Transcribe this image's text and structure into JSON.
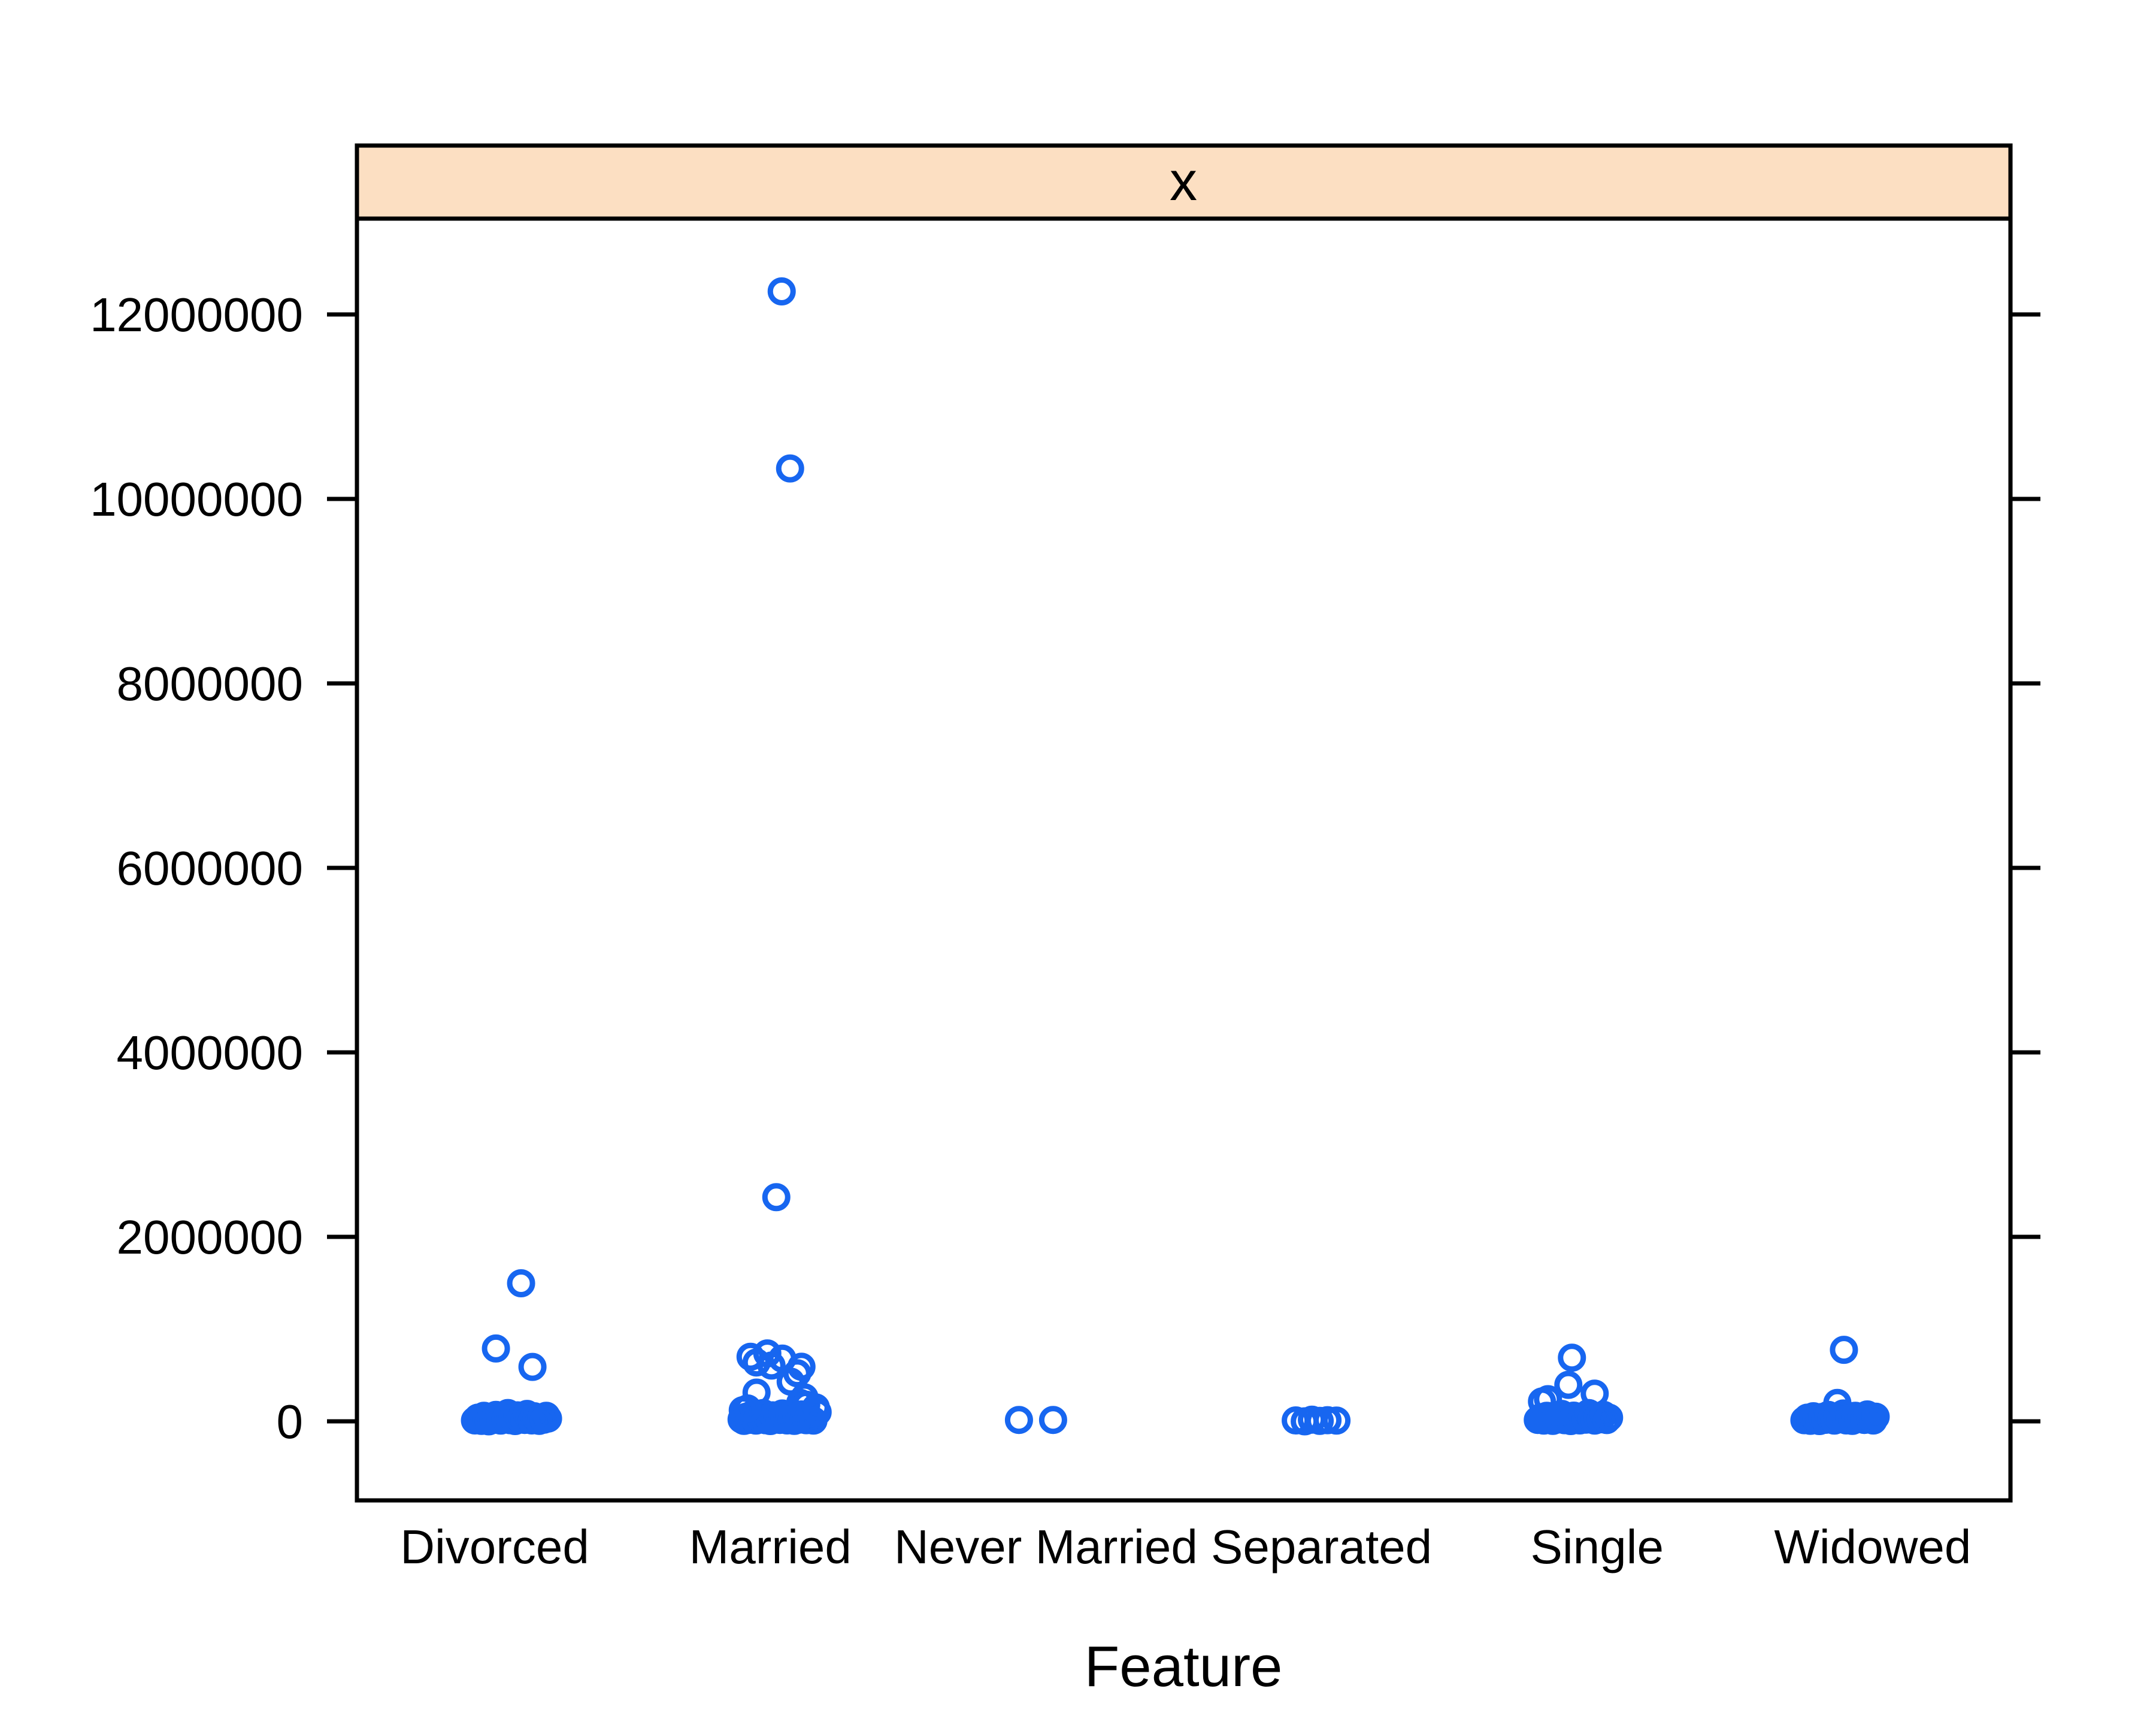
{
  "chart_data": {
    "type": "scatter",
    "subtype": "stripplot-by-category",
    "strip_label": "x",
    "xlabel": "Feature",
    "ylabel": "",
    "categories": [
      "Divorced",
      "Married",
      "Never Married",
      "Separated",
      "Single",
      "Widowed"
    ],
    "y_ticks": [
      0,
      2000000,
      4000000,
      6000000,
      8000000,
      10000000,
      12000000
    ],
    "y_tick_labels": [
      "0",
      "2000000",
      "4000000",
      "6000000",
      "8000000",
      "10000000",
      "12000000"
    ],
    "ylim": [
      -860000,
      13050000
    ],
    "grid": false,
    "legend_position": "none",
    "colors": {
      "marker": "#1766f0",
      "strip_fill": "#fcdfc2",
      "axis": "#000000",
      "background": "#ffffff"
    },
    "marker": {
      "shape": "open-circle",
      "radius": 19,
      "stroke_width": 9
    },
    "series": [
      {
        "category": "Divorced",
        "points": [
          [
            44,
            1497000
          ],
          [
            2,
            790000
          ],
          [
            63,
            590000
          ],
          [
            -33,
            10000
          ],
          [
            -28,
            40000
          ],
          [
            -22,
            5000
          ],
          [
            -18,
            60000
          ],
          [
            -14,
            20000
          ],
          [
            -10,
            0
          ],
          [
            -6,
            45000
          ],
          [
            -2,
            15000
          ],
          [
            2,
            70000
          ],
          [
            6,
            30000
          ],
          [
            10,
            8000
          ],
          [
            14,
            52000
          ],
          [
            18,
            22000
          ],
          [
            22,
            90000
          ],
          [
            26,
            12000
          ],
          [
            30,
            38000
          ],
          [
            34,
            3000
          ],
          [
            38,
            65000
          ],
          [
            42,
            25000
          ],
          [
            46,
            48000
          ],
          [
            50,
            15000
          ],
          [
            54,
            80000
          ],
          [
            58,
            35000
          ],
          [
            62,
            10000
          ],
          [
            66,
            55000
          ],
          [
            70,
            28000
          ],
          [
            74,
            5000
          ],
          [
            78,
            42000
          ],
          [
            82,
            18000
          ],
          [
            86,
            60000
          ],
          [
            89,
            30000
          ]
        ]
      },
      {
        "category": "Married",
        "points": [
          [
            19,
            12250000
          ],
          [
            33,
            10330000
          ],
          [
            10,
            2430000
          ],
          [
            -33,
            700000
          ],
          [
            -5,
            736000
          ],
          [
            -23,
            638000
          ],
          [
            2,
            605000
          ],
          [
            52,
            592000
          ],
          [
            45,
            521000
          ],
          [
            34,
            430000
          ],
          [
            -23,
            312000
          ],
          [
            57,
            260000
          ],
          [
            20,
            680000
          ],
          [
            50,
            200000
          ],
          [
            60,
            180000
          ],
          [
            -48,
            20000
          ],
          [
            -44,
            5000
          ],
          [
            -40,
            50000
          ],
          [
            -36,
            15000
          ],
          [
            -32,
            70000
          ],
          [
            -28,
            30000
          ],
          [
            -24,
            8000
          ],
          [
            -20,
            55000
          ],
          [
            -16,
            25000
          ],
          [
            -12,
            90000
          ],
          [
            -8,
            12000
          ],
          [
            -4,
            40000
          ],
          [
            0,
            3000
          ],
          [
            4,
            65000
          ],
          [
            8,
            22000
          ],
          [
            12,
            48000
          ],
          [
            16,
            15000
          ],
          [
            20,
            85000
          ],
          [
            24,
            35000
          ],
          [
            28,
            10000
          ],
          [
            32,
            58000
          ],
          [
            36,
            28000
          ],
          [
            40,
            5000
          ],
          [
            44,
            45000
          ],
          [
            48,
            18000
          ],
          [
            52,
            75000
          ],
          [
            56,
            32000
          ],
          [
            60,
            12000
          ],
          [
            64,
            52000
          ],
          [
            68,
            24000
          ],
          [
            72,
            8000
          ],
          [
            76,
            150000
          ],
          [
            79,
            100000
          ],
          [
            -46,
            120000
          ],
          [
            -38,
            140000
          ]
        ]
      },
      {
        "category": "Never Married",
        "points": [
          [
            -45,
            15000
          ],
          [
            12,
            15000
          ]
        ]
      },
      {
        "category": "Separated",
        "points": [
          [
            -43,
            10000
          ],
          [
            -28,
            0
          ],
          [
            -16,
            18000
          ],
          [
            -3,
            5000
          ],
          [
            10,
            12000
          ],
          [
            25,
            8000
          ]
        ]
      },
      {
        "category": "Single",
        "points": [
          [
            -42,
            690000
          ],
          [
            -48,
            395000
          ],
          [
            -82,
            240000
          ],
          [
            -4,
            300000
          ],
          [
            -92,
            215000
          ],
          [
            -99,
            15000
          ],
          [
            -94,
            45000
          ],
          [
            -89,
            8000
          ],
          [
            -84,
            60000
          ],
          [
            -79,
            25000
          ],
          [
            -74,
            5000
          ],
          [
            -69,
            50000
          ],
          [
            -64,
            20000
          ],
          [
            -59,
            80000
          ],
          [
            -54,
            12000
          ],
          [
            -49,
            38000
          ],
          [
            -44,
            3000
          ],
          [
            -39,
            62000
          ],
          [
            -34,
            28000
          ],
          [
            -29,
            10000
          ],
          [
            -24,
            55000
          ],
          [
            -19,
            18000
          ],
          [
            -14,
            90000
          ],
          [
            -9,
            32000
          ],
          [
            -4,
            8000
          ],
          [
            1,
            48000
          ],
          [
            6,
            22000
          ],
          [
            11,
            70000
          ],
          [
            16,
            14000
          ],
          [
            20,
            40000
          ]
        ]
      },
      {
        "category": "Widowed",
        "points": [
          [
            -48,
            775000
          ],
          [
            -59,
            200000
          ],
          [
            -114,
            12000
          ],
          [
            -109,
            40000
          ],
          [
            -104,
            6000
          ],
          [
            -99,
            55000
          ],
          [
            -94,
            20000
          ],
          [
            -89,
            3000
          ],
          [
            -84,
            48000
          ],
          [
            -79,
            16000
          ],
          [
            -74,
            70000
          ],
          [
            -69,
            28000
          ],
          [
            -64,
            8000
          ],
          [
            -59,
            52000
          ],
          [
            -54,
            22000
          ],
          [
            -49,
            85000
          ],
          [
            -44,
            10000
          ],
          [
            -39,
            35000
          ],
          [
            -34,
            5000
          ],
          [
            -29,
            60000
          ],
          [
            -24,
            25000
          ],
          [
            -19,
            45000
          ],
          [
            -14,
            15000
          ],
          [
            -9,
            75000
          ],
          [
            -4,
            30000
          ],
          [
            1,
            9000
          ],
          [
            5,
            50000
          ]
        ]
      }
    ]
  }
}
